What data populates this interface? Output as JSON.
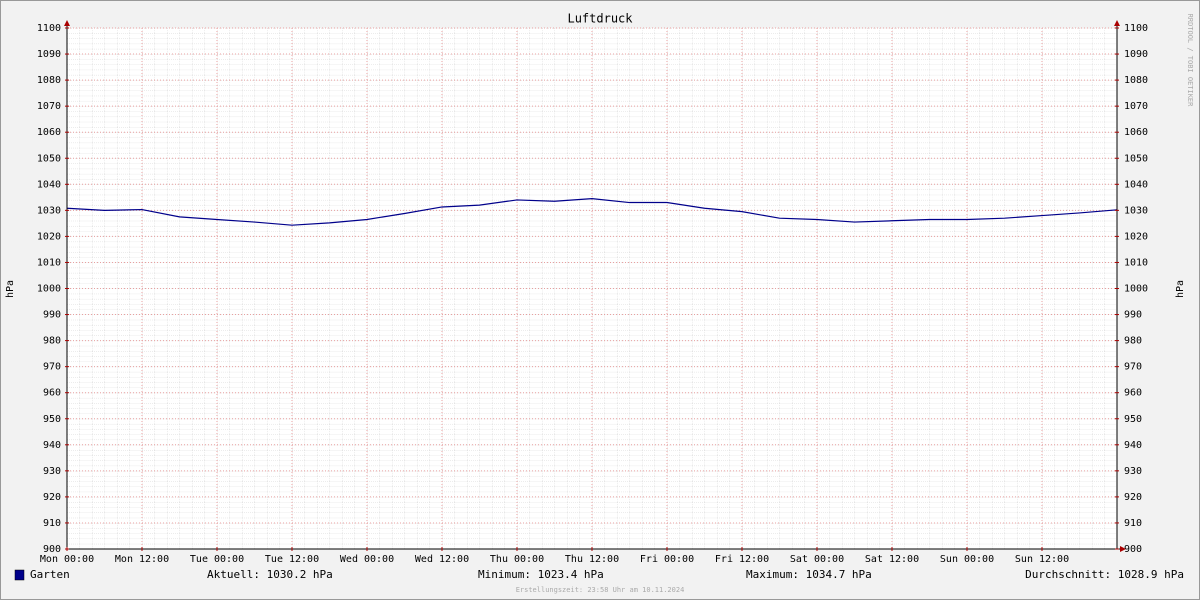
{
  "chart_data": {
    "type": "line",
    "title": "Luftdruck",
    "y_label": "hPa",
    "watermark": "RRDTOOL / TOBI OETIKER",
    "footer": "Erstellungszeit: 23:58 Uhr am 10.11.2024",
    "x": [
      0,
      6,
      12,
      18,
      24,
      30,
      36,
      42,
      48,
      54,
      60,
      66,
      72,
      78,
      84,
      90,
      96,
      102,
      108,
      114,
      120,
      126,
      132,
      138,
      144,
      150,
      156,
      162,
      168
    ],
    "series": [
      {
        "name": "Garten",
        "color": "#00008b",
        "values": [
          1030.8,
          1030,
          1030.3,
          1027.5,
          1026.5,
          1025.5,
          1024.3,
          1025.2,
          1026.5,
          1028.8,
          1031.3,
          1032,
          1034,
          1033.5,
          1034.5,
          1033,
          1033,
          1030.8,
          1029.5,
          1027,
          1026.5,
          1025.5,
          1026,
          1026.5,
          1026.5,
          1027,
          1028,
          1029,
          1030.2
        ]
      }
    ],
    "xlim": [
      0,
      168
    ],
    "xticks": [
      {
        "value": 0,
        "label": "Mon 00:00"
      },
      {
        "value": 12,
        "label": "Mon 12:00"
      },
      {
        "value": 24,
        "label": "Tue 00:00"
      },
      {
        "value": 36,
        "label": "Tue 12:00"
      },
      {
        "value": 48,
        "label": "Wed 00:00"
      },
      {
        "value": 60,
        "label": "Wed 12:00"
      },
      {
        "value": 72,
        "label": "Thu 00:00"
      },
      {
        "value": 84,
        "label": "Thu 12:00"
      },
      {
        "value": 96,
        "label": "Fri 00:00"
      },
      {
        "value": 108,
        "label": "Fri 12:00"
      },
      {
        "value": 120,
        "label": "Sat 00:00"
      },
      {
        "value": 132,
        "label": "Sat 12:00"
      },
      {
        "value": 144,
        "label": "Sun 00:00"
      },
      {
        "value": 156,
        "label": "Sun 12:00"
      }
    ],
    "ylim": [
      900,
      1100
    ],
    "yticks": [
      900,
      910,
      920,
      930,
      940,
      950,
      960,
      970,
      980,
      990,
      1000,
      1010,
      1020,
      1030,
      1040,
      1050,
      1060,
      1070,
      1080,
      1090,
      1100
    ],
    "grid": true,
    "stats": [
      {
        "label": "Aktuell:",
        "value": 1030.2,
        "unit": "hPa"
      },
      {
        "label": "Minimum:",
        "value": 1023.4,
        "unit": "hPa"
      },
      {
        "label": "Maximum:",
        "value": 1034.7,
        "unit": "hPa"
      },
      {
        "label": "Durchschnitt:",
        "value": 1028.9,
        "unit": "hPa"
      }
    ]
  }
}
